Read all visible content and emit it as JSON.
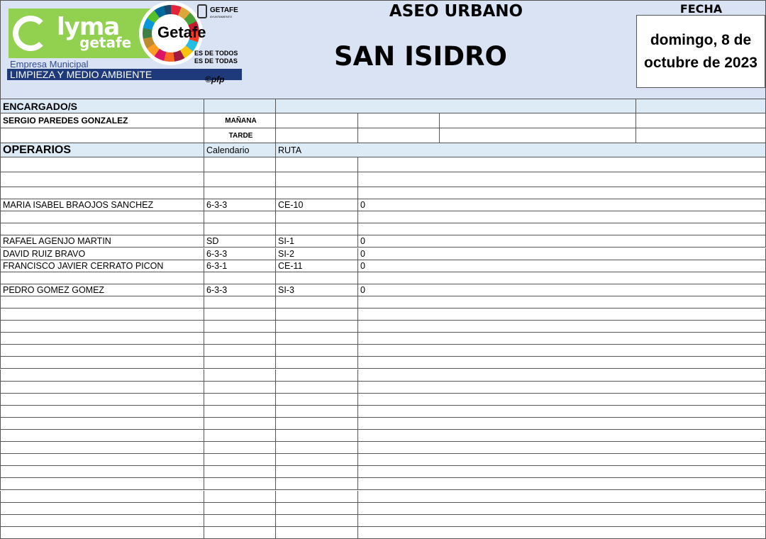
{
  "logo": {
    "brand": "Lyma",
    "brand_sub": "getafe",
    "company": "Empresa Municipal",
    "department": "LIMPIEZA Y MEDIO AMBIENTE",
    "city_logo": "Getafe",
    "city_small": "GETAFE",
    "city_small_sub": "AYUNTAMIENTO",
    "slogan_1": "ES DE TODOS",
    "slogan_2": "ES DE TODAS",
    "credit": "©pfp"
  },
  "header": {
    "service": "ASEO URBANO",
    "zone": "SAN ISIDRO",
    "date_label": "FECHA",
    "date": "domingo, 8 de octubre de 2023"
  },
  "supervisors": {
    "label": "ENCARGADO/S",
    "name": "SERGIO PAREDES GONZALEZ",
    "shift_morning": "MAÑANA",
    "shift_afternoon": "TARDE"
  },
  "workers": {
    "label": "OPERARIOS",
    "col_calendar": "Calendario",
    "col_route": "RUTA",
    "rows": [
      {},
      {},
      {},
      {
        "name": "MARIA ISABEL BRAOJOS SANCHEZ",
        "calendar": "6-3-3",
        "route": "CE-10",
        "value": "0"
      },
      {},
      {},
      {
        "name": "RAFAEL AGENJO MARTIN",
        "calendar": "SD",
        "route": "SI-1",
        "value": "0"
      },
      {
        "name": "DAVID RUIZ BRAVO",
        "calendar": "6-3-3",
        "route": "SI-2",
        "value": "0"
      },
      {
        "name": "FRANCISCO JAVIER CERRATO PICON",
        "calendar": "6-3-1",
        "route": "CE-11",
        "value": "0"
      },
      {},
      {
        "name": "PEDRO GOMEZ GOMEZ",
        "calendar": "6-3-3",
        "route": "SI-3",
        "value": "0"
      },
      {},
      {},
      {},
      {},
      {},
      {},
      {},
      {},
      {},
      {},
      {},
      {},
      {},
      {},
      {},
      {},
      {},
      {},
      {},
      {}
    ]
  }
}
